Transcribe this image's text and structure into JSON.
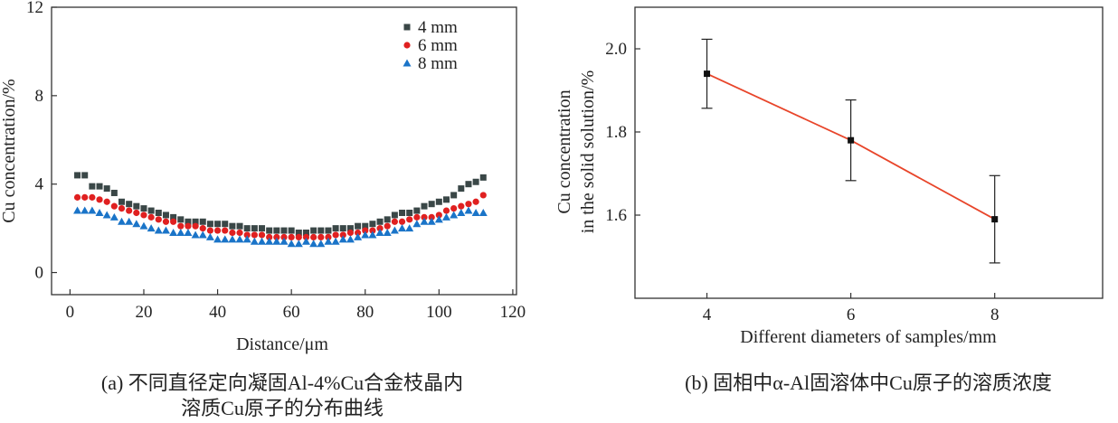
{
  "chart_data": [
    {
      "type": "scatter",
      "title": "",
      "xlabel": "Distance/μm",
      "ylabel": "Cu concentration/%",
      "xlim": [
        -5,
        121
      ],
      "ylim": [
        -1,
        12
      ],
      "xticks": [
        0,
        20,
        40,
        60,
        80,
        100,
        120
      ],
      "yticks": [
        0,
        4,
        8,
        12
      ],
      "legend_position": "top-right",
      "caption": [
        "(a) 不同直径定向凝固Al-4%Cu合金枝晶内",
        "溶质Cu原子的分布曲线"
      ],
      "series": [
        {
          "name": "4 mm",
          "marker": "square",
          "color": "#3a4747",
          "x": [
            2,
            4,
            6,
            8,
            10,
            12,
            14,
            16,
            18,
            20,
            22,
            24,
            26,
            28,
            30,
            32,
            34,
            36,
            38,
            40,
            42,
            44,
            46,
            48,
            50,
            52,
            54,
            56,
            58,
            60,
            62,
            64,
            66,
            68,
            70,
            72,
            74,
            76,
            78,
            80,
            82,
            84,
            86,
            88,
            90,
            92,
            94,
            96,
            98,
            100,
            102,
            104,
            106,
            108,
            110,
            112
          ],
          "y": [
            4.4,
            4.4,
            3.9,
            3.9,
            3.8,
            3.6,
            3.2,
            3.1,
            3.0,
            2.9,
            2.8,
            2.7,
            2.6,
            2.5,
            2.4,
            2.3,
            2.3,
            2.3,
            2.2,
            2.2,
            2.2,
            2.1,
            2.1,
            2.0,
            2.0,
            2.0,
            1.9,
            1.9,
            1.9,
            1.9,
            1.8,
            1.8,
            1.9,
            1.9,
            1.9,
            2.0,
            2.0,
            2.0,
            2.1,
            2.1,
            2.2,
            2.3,
            2.4,
            2.6,
            2.7,
            2.7,
            2.8,
            3.0,
            3.1,
            3.2,
            3.3,
            3.5,
            3.8,
            4.0,
            4.1,
            4.3
          ]
        },
        {
          "name": "6 mm",
          "marker": "circle",
          "color": "#e02020",
          "x": [
            2,
            4,
            6,
            8,
            10,
            12,
            14,
            16,
            18,
            20,
            22,
            24,
            26,
            28,
            30,
            32,
            34,
            36,
            38,
            40,
            42,
            44,
            46,
            48,
            50,
            52,
            54,
            56,
            58,
            60,
            62,
            64,
            66,
            68,
            70,
            72,
            74,
            76,
            78,
            80,
            82,
            84,
            86,
            88,
            90,
            92,
            94,
            96,
            98,
            100,
            102,
            104,
            106,
            108,
            110,
            112
          ],
          "y": [
            3.4,
            3.4,
            3.4,
            3.3,
            3.2,
            3.0,
            2.9,
            2.8,
            2.7,
            2.6,
            2.5,
            2.4,
            2.3,
            2.3,
            2.1,
            2.1,
            2.1,
            2.0,
            1.9,
            1.9,
            1.9,
            1.8,
            1.8,
            1.7,
            1.7,
            1.7,
            1.6,
            1.6,
            1.6,
            1.6,
            1.6,
            1.6,
            1.6,
            1.6,
            1.6,
            1.7,
            1.7,
            1.8,
            1.8,
            1.9,
            1.9,
            2.0,
            2.1,
            2.3,
            2.3,
            2.4,
            2.5,
            2.5,
            2.5,
            2.6,
            2.8,
            2.9,
            3.0,
            3.1,
            3.2,
            3.5
          ]
        },
        {
          "name": "8 mm",
          "marker": "triangle",
          "color": "#1a74c8",
          "x": [
            2,
            4,
            6,
            8,
            10,
            12,
            14,
            16,
            18,
            20,
            22,
            24,
            26,
            28,
            30,
            32,
            34,
            36,
            38,
            40,
            42,
            44,
            46,
            48,
            50,
            52,
            54,
            56,
            58,
            60,
            62,
            64,
            66,
            68,
            70,
            72,
            74,
            76,
            78,
            80,
            82,
            84,
            86,
            88,
            90,
            92,
            94,
            96,
            98,
            100,
            102,
            104,
            106,
            108,
            110,
            112
          ],
          "y": [
            2.8,
            2.8,
            2.8,
            2.7,
            2.6,
            2.5,
            2.3,
            2.3,
            2.2,
            2.1,
            2.0,
            1.9,
            1.9,
            1.8,
            1.8,
            1.8,
            1.7,
            1.7,
            1.6,
            1.5,
            1.5,
            1.5,
            1.5,
            1.5,
            1.4,
            1.4,
            1.4,
            1.4,
            1.4,
            1.3,
            1.3,
            1.4,
            1.3,
            1.3,
            1.4,
            1.4,
            1.5,
            1.5,
            1.6,
            1.7,
            1.7,
            1.8,
            1.8,
            1.9,
            2.0,
            2.0,
            2.2,
            2.3,
            2.3,
            2.4,
            2.5,
            2.6,
            2.7,
            2.8,
            2.7,
            2.7
          ]
        }
      ]
    },
    {
      "type": "line",
      "title": "",
      "xlabel": "Different diameters of samples/mm",
      "ylabel": [
        "Cu concentration",
        "in the solid solution/%"
      ],
      "xlim": [
        3,
        9.5
      ],
      "ylim": [
        1.4,
        2.1
      ],
      "xticks": [
        4,
        6,
        8
      ],
      "yticks": [
        1.6,
        1.8,
        2.0
      ],
      "caption": "(b) 固相中α-Al固溶体中Cu原子的溶质浓度",
      "series": [
        {
          "name": "",
          "marker": "square",
          "color": "#e8452a",
          "marker_color": "#111111",
          "x": [
            4,
            6,
            8
          ],
          "y": [
            1.94,
            1.78,
            1.59
          ],
          "error": [
            0.083,
            0.097,
            0.105
          ]
        }
      ]
    }
  ]
}
